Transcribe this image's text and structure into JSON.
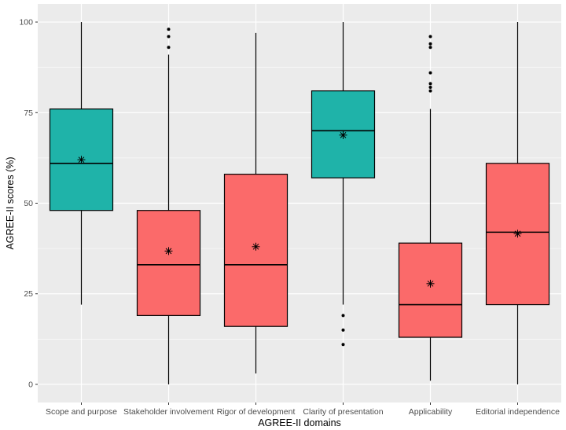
{
  "chart_data": {
    "type": "boxplot",
    "title": "",
    "xlabel": "AGREE-II domains",
    "ylabel": "AGREE-II scores (%)",
    "ylim": [
      -5,
      105
    ],
    "yticks": [
      0,
      25,
      50,
      75,
      100
    ],
    "grid": true,
    "legend": "none",
    "categories": [
      "Scope and purpose",
      "Stakeholder involvement",
      "Rigor of development",
      "Clarity of presentation",
      "Applicability",
      "Editorial independence"
    ],
    "boxes": [
      {
        "category": "Scope and purpose",
        "min": 22,
        "q1": 48,
        "median": 61,
        "q3": 76,
        "max": 100,
        "mean": 62,
        "outliers": [],
        "color": "#1fb3a9"
      },
      {
        "category": "Stakeholder involvement",
        "min": 0,
        "q1": 19,
        "median": 33,
        "q3": 48,
        "max": 91,
        "mean": 36.8,
        "outliers": [
          93,
          96,
          98
        ],
        "color": "#fb6a6a"
      },
      {
        "category": "Rigor of development",
        "min": 3,
        "q1": 16,
        "median": 33,
        "q3": 58,
        "max": 97,
        "mean": 38,
        "outliers": [],
        "color": "#fb6a6a"
      },
      {
        "category": "Clarity of presentation",
        "min": 22,
        "q1": 57,
        "median": 70,
        "q3": 81,
        "max": 100,
        "mean": 68.8,
        "outliers": [
          11,
          15,
          19
        ],
        "color": "#1fb3a9"
      },
      {
        "category": "Applicability",
        "min": 1,
        "q1": 13,
        "median": 22,
        "q3": 39,
        "max": 76,
        "mean": 27.8,
        "outliers": [
          81,
          82,
          83,
          86,
          93,
          94,
          96
        ],
        "color": "#fb6a6a"
      },
      {
        "category": "Editorial independence",
        "min": 0,
        "q1": 22,
        "median": 42,
        "q3": 61,
        "max": 100,
        "mean": 41.6,
        "outliers": [],
        "color": "#fb6a6a"
      }
    ],
    "colors": {
      "panel": "#ebebeb",
      "grid": "#ffffff",
      "box_outline": "#000000",
      "whisker": "#000000"
    }
  }
}
